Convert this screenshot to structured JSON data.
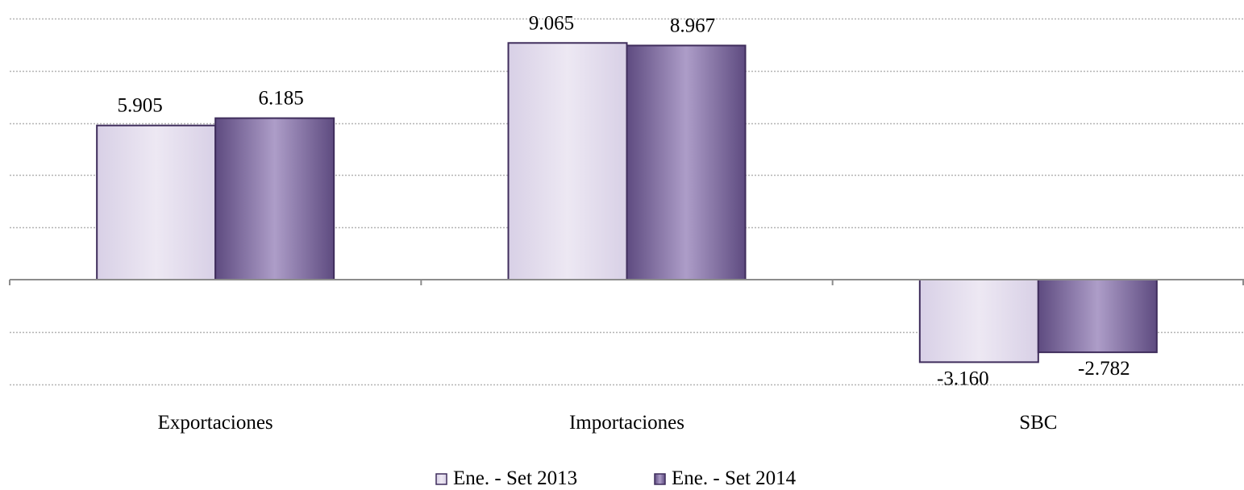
{
  "chart_data": {
    "type": "bar",
    "title": "",
    "xlabel": "",
    "ylabel": "",
    "categories": [
      "Exportaciones",
      "Importaciones",
      "SBC"
    ],
    "series": [
      {
        "name": "Ene. - Set 2013",
        "values": [
          5905,
          9065,
          -3160
        ],
        "labels": [
          "5.905",
          "9.065",
          "-3.160"
        ]
      },
      {
        "name": "Ene. - Set 2014",
        "values": [
          6185,
          8967,
          -2782
        ],
        "labels": [
          "6.185",
          "8.967",
          "-2.782"
        ]
      }
    ],
    "ylim": [
      -4000,
      10000
    ],
    "gridlines": [
      -4000,
      -2000,
      2000,
      4000,
      6000,
      8000,
      10000
    ],
    "grid": true,
    "grid_style": "dotted",
    "legend_position": "bottom-center",
    "colors": {
      "series_1_edge": "#d8d0e6",
      "series_1_center": "#ede8f3",
      "series_2_edge": "#5e4b80",
      "series_2_center": "#ad9dc8",
      "bar_border": "#3f2d5c",
      "grid": "#b4b4b4",
      "axis": "#8c8c8c"
    }
  }
}
